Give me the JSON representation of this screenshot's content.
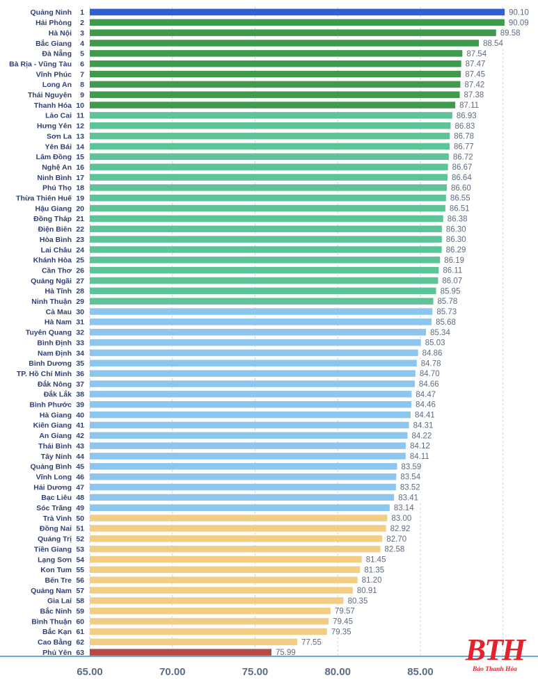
{
  "chart_data": {
    "type": "bar",
    "orientation": "horizontal",
    "title": "",
    "xlabel": "",
    "ylabel": "",
    "xlim": [
      65,
      90
    ],
    "xticks": [
      "65.00",
      "70.00",
      "75.00",
      "80.00",
      "85.00"
    ],
    "grid": true,
    "categories": [
      {
        "name": "Quảng Ninh",
        "rank": "1",
        "value": 90.1,
        "label": "90.10",
        "color": "#2d5fd6"
      },
      {
        "name": "Hải Phòng",
        "rank": "2",
        "value": 90.09,
        "label": "90.09",
        "color": "#3f9a4c"
      },
      {
        "name": "Hà Nội",
        "rank": "3",
        "value": 89.58,
        "label": "89.58",
        "color": "#3f9a4c"
      },
      {
        "name": "Bắc Giang",
        "rank": "4",
        "value": 88.54,
        "label": "88.54",
        "color": "#3f9a4c"
      },
      {
        "name": "Đà Nẵng",
        "rank": "5",
        "value": 87.54,
        "label": "87.54",
        "color": "#3f9a4c"
      },
      {
        "name": "Bà Rịa - Vũng Tàu",
        "rank": "6",
        "value": 87.47,
        "label": "87.47",
        "color": "#3f9a4c"
      },
      {
        "name": "Vĩnh Phúc",
        "rank": "7",
        "value": 87.45,
        "label": "87.45",
        "color": "#3f9a4c"
      },
      {
        "name": "Long An",
        "rank": "8",
        "value": 87.42,
        "label": "87.42",
        "color": "#3f9a4c"
      },
      {
        "name": "Thái Nguyên",
        "rank": "9",
        "value": 87.38,
        "label": "87.38",
        "color": "#3f9a4c"
      },
      {
        "name": "Thanh Hóa",
        "rank": "10",
        "value": 87.11,
        "label": "87.11",
        "color": "#3f9a4c"
      },
      {
        "name": "Lào Cai",
        "rank": "11",
        "value": 86.93,
        "label": "86.93",
        "color": "#5cc497"
      },
      {
        "name": "Hưng Yên",
        "rank": "12",
        "value": 86.83,
        "label": "86.83",
        "color": "#5cc497"
      },
      {
        "name": "Sơn La",
        "rank": "13",
        "value": 86.78,
        "label": "86.78",
        "color": "#5cc497"
      },
      {
        "name": "Yên Bái",
        "rank": "14",
        "value": 86.77,
        "label": "86.77",
        "color": "#5cc497"
      },
      {
        "name": "Lâm Đồng",
        "rank": "15",
        "value": 86.72,
        "label": "86.72",
        "color": "#5cc497"
      },
      {
        "name": "Nghệ An",
        "rank": "16",
        "value": 86.67,
        "label": "86.67",
        "color": "#5cc497"
      },
      {
        "name": "Ninh Bình",
        "rank": "17",
        "value": 86.64,
        "label": "86.64",
        "color": "#5cc497"
      },
      {
        "name": "Phú Thọ",
        "rank": "18",
        "value": 86.6,
        "label": "86.60",
        "color": "#5cc497"
      },
      {
        "name": "Thừa Thiên Huế",
        "rank": "19",
        "value": 86.55,
        "label": "86.55",
        "color": "#5cc497"
      },
      {
        "name": "Hậu Giang",
        "rank": "20",
        "value": 86.51,
        "label": "86.51",
        "color": "#5cc497"
      },
      {
        "name": "Đồng Tháp",
        "rank": "21",
        "value": 86.38,
        "label": "86.38",
        "color": "#5cc497"
      },
      {
        "name": "Điện Biên",
        "rank": "22",
        "value": 86.3,
        "label": "86.30",
        "color": "#5cc497"
      },
      {
        "name": "Hòa Bình",
        "rank": "23",
        "value": 86.3,
        "label": "86.30",
        "color": "#5cc497"
      },
      {
        "name": "Lai Châu",
        "rank": "24",
        "value": 86.29,
        "label": "86.29",
        "color": "#5cc497"
      },
      {
        "name": "Khánh Hòa",
        "rank": "25",
        "value": 86.19,
        "label": "86.19",
        "color": "#5cc497"
      },
      {
        "name": "Cần Thơ",
        "rank": "26",
        "value": 86.11,
        "label": "86.11",
        "color": "#5cc497"
      },
      {
        "name": "Quảng Ngãi",
        "rank": "27",
        "value": 86.07,
        "label": "86.07",
        "color": "#5cc497"
      },
      {
        "name": "Hà Tĩnh",
        "rank": "28",
        "value": 85.95,
        "label": "85.95",
        "color": "#5cc497"
      },
      {
        "name": "Ninh Thuận",
        "rank": "29",
        "value": 85.78,
        "label": "85.78",
        "color": "#5cc497"
      },
      {
        "name": "Cà Mau",
        "rank": "30",
        "value": 85.73,
        "label": "85.73",
        "color": "#8cc6ef"
      },
      {
        "name": "Hà Nam",
        "rank": "31",
        "value": 85.68,
        "label": "85.68",
        "color": "#8cc6ef"
      },
      {
        "name": "Tuyên Quang",
        "rank": "32",
        "value": 85.34,
        "label": "85.34",
        "color": "#8cc6ef"
      },
      {
        "name": "Bình Định",
        "rank": "33",
        "value": 85.03,
        "label": "85.03",
        "color": "#8cc6ef"
      },
      {
        "name": "Nam Định",
        "rank": "34",
        "value": 84.86,
        "label": "84.86",
        "color": "#8cc6ef"
      },
      {
        "name": "Bình Dương",
        "rank": "35",
        "value": 84.78,
        "label": "84.78",
        "color": "#8cc6ef"
      },
      {
        "name": "TP. Hồ Chí Minh",
        "rank": "36",
        "value": 84.7,
        "label": "84.70",
        "color": "#8cc6ef"
      },
      {
        "name": "Đắk Nông",
        "rank": "37",
        "value": 84.66,
        "label": "84.66",
        "color": "#8cc6ef"
      },
      {
        "name": "Đắk Lắk",
        "rank": "38",
        "value": 84.47,
        "label": "84.47",
        "color": "#8cc6ef"
      },
      {
        "name": "Bình Phước",
        "rank": "39",
        "value": 84.46,
        "label": "84.46",
        "color": "#8cc6ef"
      },
      {
        "name": "Hà Giang",
        "rank": "40",
        "value": 84.41,
        "label": "84.41",
        "color": "#8cc6ef"
      },
      {
        "name": "Kiên Giang",
        "rank": "41",
        "value": 84.31,
        "label": "84.31",
        "color": "#8cc6ef"
      },
      {
        "name": "An Giang",
        "rank": "42",
        "value": 84.22,
        "label": "84.22",
        "color": "#8cc6ef"
      },
      {
        "name": "Thái Bình",
        "rank": "43",
        "value": 84.12,
        "label": "84.12",
        "color": "#8cc6ef"
      },
      {
        "name": "Tây Ninh",
        "rank": "44",
        "value": 84.11,
        "label": "84.11",
        "color": "#8cc6ef"
      },
      {
        "name": "Quảng Bình",
        "rank": "45",
        "value": 83.59,
        "label": "83.59",
        "color": "#8cc6ef"
      },
      {
        "name": "Vĩnh Long",
        "rank": "46",
        "value": 83.54,
        "label": "83.54",
        "color": "#8cc6ef"
      },
      {
        "name": "Hải Dương",
        "rank": "47",
        "value": 83.52,
        "label": "83.52",
        "color": "#8cc6ef"
      },
      {
        "name": "Bạc Liêu",
        "rank": "48",
        "value": 83.41,
        "label": "83.41",
        "color": "#8cc6ef"
      },
      {
        "name": "Sóc Trăng",
        "rank": "49",
        "value": 83.14,
        "label": "83.14",
        "color": "#8cc6ef"
      },
      {
        "name": "Trà Vinh",
        "rank": "50",
        "value": 83.0,
        "label": "83.00",
        "color": "#f2cd84"
      },
      {
        "name": "Đồng Nai",
        "rank": "51",
        "value": 82.92,
        "label": "82.92",
        "color": "#f2cd84"
      },
      {
        "name": "Quảng Trị",
        "rank": "52",
        "value": 82.7,
        "label": "82.70",
        "color": "#f2cd84"
      },
      {
        "name": "Tiền Giang",
        "rank": "53",
        "value": 82.58,
        "label": "82.58",
        "color": "#f2cd84"
      },
      {
        "name": "Lạng Sơn",
        "rank": "54",
        "value": 81.45,
        "label": "81.45",
        "color": "#f2cd84"
      },
      {
        "name": "Kon Tum",
        "rank": "55",
        "value": 81.35,
        "label": "81.35",
        "color": "#f2cd84"
      },
      {
        "name": "Bến Tre",
        "rank": "56",
        "value": 81.2,
        "label": "81.20",
        "color": "#f2cd84"
      },
      {
        "name": "Quảng Nam",
        "rank": "57",
        "value": 80.91,
        "label": "80.91",
        "color": "#f2cd84"
      },
      {
        "name": "Gia Lai",
        "rank": "58",
        "value": 80.35,
        "label": "80.35",
        "color": "#f2cd84"
      },
      {
        "name": "Bắc Ninh",
        "rank": "59",
        "value": 79.57,
        "label": "79.57",
        "color": "#f2cd84"
      },
      {
        "name": "Bình Thuận",
        "rank": "60",
        "value": 79.45,
        "label": "79.45",
        "color": "#f2cd84"
      },
      {
        "name": "Bắc Kạn",
        "rank": "61",
        "value": 79.35,
        "label": "79.35",
        "color": "#f2cd84"
      },
      {
        "name": "Cao Bằng",
        "rank": "62",
        "value": 77.55,
        "label": "77.55",
        "color": "#f2cd84"
      },
      {
        "name": "Phú Yên",
        "rank": "63",
        "value": 75.99,
        "label": "75.99",
        "color": "#b54a43"
      }
    ]
  },
  "logo": {
    "text": "BTH",
    "subtitle": "Báo Thanh Hóa",
    "color": "#e3232a"
  }
}
